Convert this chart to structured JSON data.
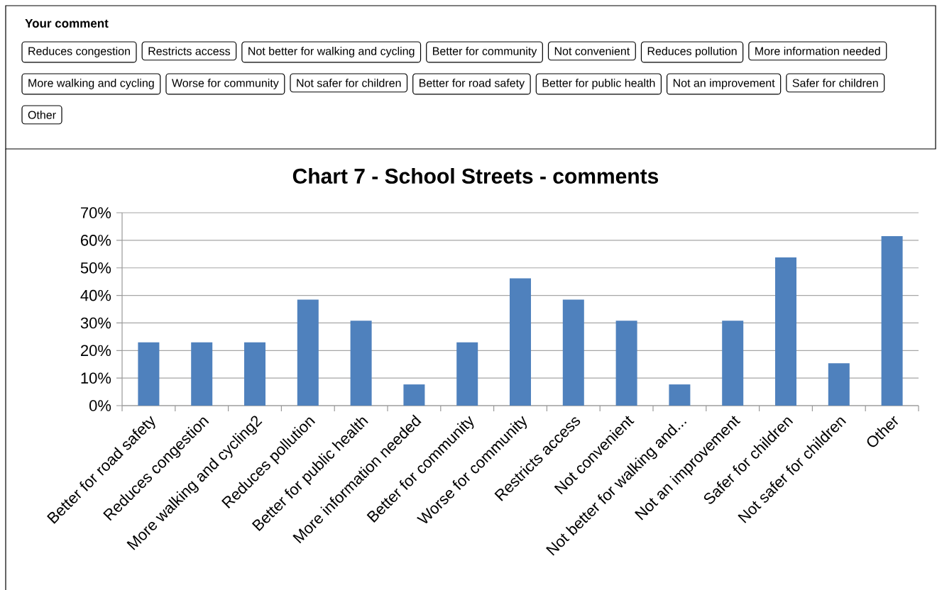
{
  "chart_data": [
    {
      "type": "other",
      "title": "Your comment",
      "annotations": [
        "Reduces congestion",
        "Restricts access",
        "Not better for walking and cycling",
        "Better for community",
        "Not convenient",
        "Reduces pollution",
        "More information needed",
        "More walking and cycling",
        "Worse for community",
        "Not safer for children",
        "Better for road safety",
        "Better for public health",
        "Not an improvement",
        "Safer for children",
        "Other"
      ]
    },
    {
      "type": "bar",
      "title": "Chart 7 - School Streets - comments",
      "categories": [
        "Better for road safety",
        "Reduces congestion",
        "More walking and cycling2",
        "Reduces pollution",
        "Better for public health",
        "More information needed",
        "Better for community",
        "Worse for community",
        "Restricts access",
        "Not convenient",
        "Not better for walking and...",
        "Not an improvement",
        "Safer for children",
        "Not safer for children",
        "Other"
      ],
      "values": [
        23,
        23,
        23,
        38.5,
        30.8,
        7.7,
        23,
        46.2,
        38.5,
        30.8,
        7.7,
        30.8,
        53.8,
        15.4,
        61.5
      ],
      "color": "#4f81bd",
      "ylim": [
        0,
        70
      ],
      "yticks": [
        {
          "value": 0,
          "label": "0%"
        },
        {
          "value": 10,
          "label": "10%"
        },
        {
          "value": 20,
          "label": "20%"
        },
        {
          "value": 30,
          "label": "30%"
        },
        {
          "value": 40,
          "label": "40%"
        },
        {
          "value": 50,
          "label": "50%"
        },
        {
          "value": 60,
          "label": "60%"
        },
        {
          "value": 70,
          "label": "70%"
        }
      ],
      "grid": "y"
    }
  ]
}
